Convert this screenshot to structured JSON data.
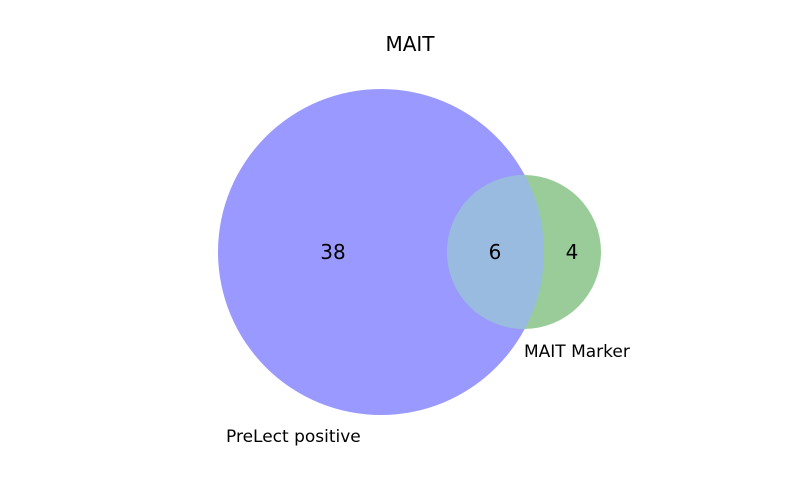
{
  "title": "MAIT",
  "chart_data": {
    "type": "venn",
    "sets": [
      {
        "name": "PreLect positive",
        "only_count": "38",
        "color": "#9999ff"
      },
      {
        "name": "MAIT Marker",
        "only_count": "4",
        "color": "#99cc99"
      }
    ],
    "intersection": {
      "count": "6",
      "color": "#99bbe0"
    }
  }
}
